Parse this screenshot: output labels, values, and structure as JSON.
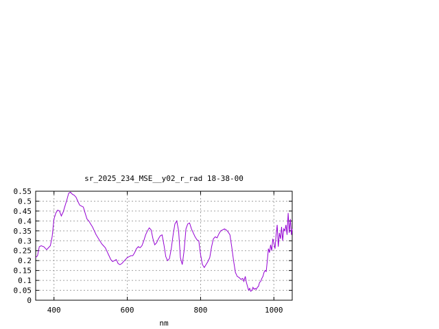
{
  "chart_data": {
    "type": "line",
    "title": "sr_2025_234_MSE__y02_r_rad 18-38-00",
    "xlabel": "nm",
    "ylabel": "",
    "xlim": [
      350,
      1050
    ],
    "ylim": [
      0,
      0.55
    ],
    "grid": true,
    "x_ticks": [
      400,
      600,
      800,
      1000
    ],
    "x_tick_labels": [
      "400",
      "600",
      "800",
      "1000"
    ],
    "y_ticks": [
      0,
      0.05,
      0.1,
      0.15,
      0.2,
      0.25,
      0.3,
      0.35,
      0.4,
      0.45,
      0.5,
      0.55
    ],
    "y_tick_labels": [
      "0",
      "0.05",
      "0.1",
      "0.15",
      "0.2",
      "0.25",
      "0.3",
      "0.35",
      "0.4",
      "0.45",
      "0.5",
      "0.55"
    ],
    "colors": {
      "series": "#9400d3",
      "grid": "#a0a0a0",
      "axis": "#000000"
    },
    "series": [
      {
        "x": [
          350,
          355,
          360,
          365,
          372,
          380,
          385,
          390,
          395,
          400,
          405,
          410,
          415,
          420,
          425,
          430,
          435,
          440,
          445,
          450,
          455,
          460,
          465,
          470,
          475,
          480,
          485,
          490,
          495,
          500,
          505,
          510,
          515,
          520,
          525,
          530,
          535,
          540,
          545,
          550,
          555,
          560,
          565,
          570,
          575,
          580,
          585,
          590,
          595,
          600,
          605,
          610,
          615,
          620,
          625,
          630,
          635,
          640,
          645,
          650,
          655,
          660,
          665,
          670,
          675,
          680,
          685,
          690,
          695,
          700,
          705,
          710,
          715,
          720,
          725,
          730,
          735,
          740,
          745,
          750,
          755,
          760,
          765,
          770,
          775,
          780,
          785,
          790,
          795,
          800,
          805,
          810,
          815,
          820,
          825,
          830,
          835,
          840,
          845,
          850,
          855,
          860,
          865,
          870,
          875,
          880,
          885,
          890,
          895,
          900,
          905,
          910,
          915,
          918,
          922,
          925,
          928,
          931,
          934,
          937,
          940,
          943,
          946,
          949,
          952,
          955,
          958,
          961,
          964,
          967,
          970,
          973,
          976,
          979,
          982,
          985,
          988,
          991,
          994,
          997,
          1000,
          1003,
          1006,
          1009,
          1012,
          1015,
          1018,
          1021,
          1024,
          1027,
          1030,
          1033,
          1036,
          1039,
          1042,
          1045,
          1048,
          1050
        ],
        "y": [
          0.215,
          0.225,
          0.27,
          0.275,
          0.27,
          0.255,
          0.265,
          0.275,
          0.32,
          0.41,
          0.44,
          0.455,
          0.45,
          0.425,
          0.445,
          0.475,
          0.505,
          0.54,
          0.545,
          0.535,
          0.53,
          0.52,
          0.5,
          0.48,
          0.475,
          0.47,
          0.44,
          0.41,
          0.4,
          0.385,
          0.37,
          0.35,
          0.33,
          0.315,
          0.3,
          0.285,
          0.275,
          0.265,
          0.245,
          0.225,
          0.205,
          0.195,
          0.2,
          0.205,
          0.185,
          0.18,
          0.185,
          0.195,
          0.205,
          0.215,
          0.22,
          0.225,
          0.225,
          0.24,
          0.26,
          0.27,
          0.265,
          0.275,
          0.3,
          0.33,
          0.35,
          0.365,
          0.355,
          0.31,
          0.28,
          0.29,
          0.31,
          0.325,
          0.33,
          0.28,
          0.22,
          0.2,
          0.21,
          0.26,
          0.33,
          0.385,
          0.4,
          0.35,
          0.215,
          0.18,
          0.25,
          0.36,
          0.385,
          0.39,
          0.36,
          0.34,
          0.32,
          0.305,
          0.3,
          0.23,
          0.18,
          0.165,
          0.18,
          0.195,
          0.215,
          0.27,
          0.31,
          0.32,
          0.315,
          0.335,
          0.35,
          0.355,
          0.36,
          0.355,
          0.345,
          0.33,
          0.27,
          0.2,
          0.14,
          0.12,
          0.115,
          0.105,
          0.11,
          0.095,
          0.12,
          0.09,
          0.07,
          0.05,
          0.06,
          0.045,
          0.05,
          0.065,
          0.055,
          0.06,
          0.055,
          0.065,
          0.07,
          0.09,
          0.095,
          0.11,
          0.12,
          0.14,
          0.15,
          0.145,
          0.2,
          0.26,
          0.24,
          0.28,
          0.25,
          0.31,
          0.29,
          0.26,
          0.33,
          0.38,
          0.27,
          0.34,
          0.31,
          0.37,
          0.3,
          0.36,
          0.35,
          0.38,
          0.33,
          0.44,
          0.34,
          0.41,
          0.33,
          0.36
        ]
      }
    ]
  }
}
